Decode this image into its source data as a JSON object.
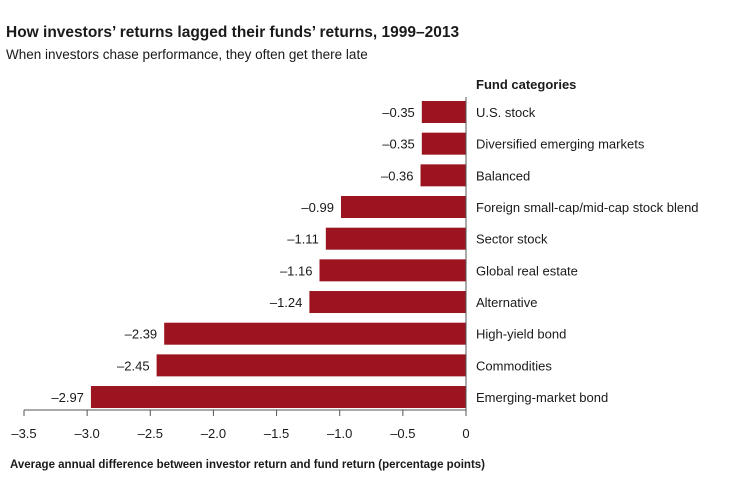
{
  "chart_data": {
    "type": "bar",
    "orientation": "horizontal",
    "title": "How investors’ returns lagged their funds’ returns, 1999–2013",
    "subtitle": "When investors chase performance, they often get there late",
    "legend_title": "Fund categories",
    "xlabel": "Average annual difference between investor return and fund return (percentage points)",
    "xlim": [
      -3.5,
      0
    ],
    "xticks": [
      -3.5,
      -3.0,
      -2.5,
      -2.0,
      -1.5,
      -1.0,
      -0.5,
      0
    ],
    "xtick_labels": [
      "–3.5",
      "–3.0",
      "–2.5",
      "–2.0",
      "–1.5",
      "–1.0",
      "–0.5",
      "0"
    ],
    "grid": false,
    "bar_color": "#9b1420",
    "categories": [
      "U.S. stock",
      "Diversified emerging markets",
      "Balanced",
      "Foreign small-cap/mid-cap stock blend",
      "Sector stock",
      "Global real estate",
      "Alternative",
      "High-yield bond",
      "Commodities",
      "Emerging-market bond"
    ],
    "values": [
      -0.35,
      -0.35,
      -0.36,
      -0.99,
      -1.11,
      -1.16,
      -1.24,
      -2.39,
      -2.45,
      -2.97
    ],
    "value_labels": [
      "–0.35",
      "–0.35",
      "–0.36",
      "–0.99",
      "–1.11",
      "–1.16",
      "–1.24",
      "–2.39",
      "–2.45",
      "–2.97"
    ]
  }
}
